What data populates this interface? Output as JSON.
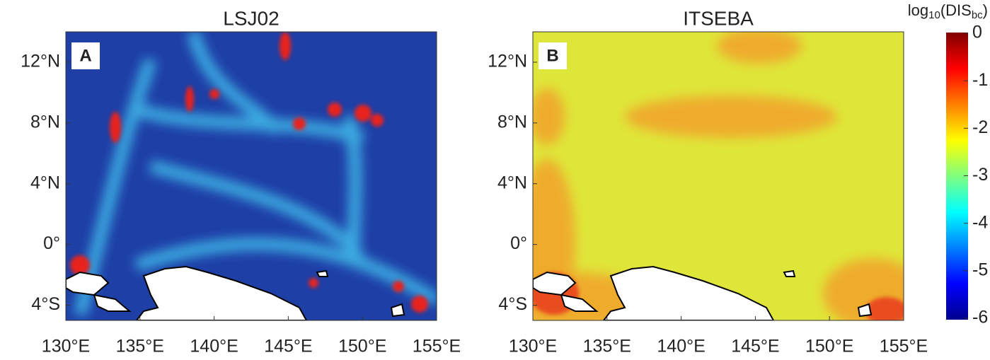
{
  "panels": [
    {
      "title": "LSJ02",
      "letter": "A",
      "xlim": [
        130,
        155
      ],
      "ylim": [
        -5,
        14
      ],
      "xticks": [
        {
          "value": 130,
          "label": "130°E"
        },
        {
          "value": 135,
          "label": "135°E"
        },
        {
          "value": 140,
          "label": "140°E"
        },
        {
          "value": 145,
          "label": "145°E"
        },
        {
          "value": 150,
          "label": "150°E"
        },
        {
          "value": 155,
          "label": "155°E"
        }
      ],
      "yticks": [
        {
          "value": -4,
          "label": "4°S"
        },
        {
          "value": 0,
          "label": "0°"
        },
        {
          "value": 4,
          "label": "4°N"
        },
        {
          "value": 8,
          "label": "8°N"
        },
        {
          "value": 12,
          "label": "12°N"
        }
      ]
    },
    {
      "title": "ITSEBA",
      "letter": "B",
      "xlim": [
        130,
        155
      ],
      "ylim": [
        -5,
        14
      ],
      "xticks": [
        {
          "value": 130,
          "label": "130°E"
        },
        {
          "value": 135,
          "label": "135°E"
        },
        {
          "value": 140,
          "label": "140°E"
        },
        {
          "value": 145,
          "label": "145°E"
        },
        {
          "value": 150,
          "label": "150°E"
        },
        {
          "value": 155,
          "label": "155°E"
        }
      ],
      "yticks": [
        {
          "value": -4,
          "label": "4°S"
        },
        {
          "value": 0,
          "label": "0°"
        },
        {
          "value": 4,
          "label": "4°N"
        },
        {
          "value": 8,
          "label": "8°N"
        },
        {
          "value": 12,
          "label": "12°N"
        }
      ]
    }
  ],
  "colorbar": {
    "label": [
      "log",
      "10",
      "(DIS",
      "bc",
      ")"
    ],
    "lim": [
      -6,
      0
    ],
    "ticks": [
      0,
      -1,
      -2,
      -3,
      -4,
      -5,
      -6
    ]
  }
}
